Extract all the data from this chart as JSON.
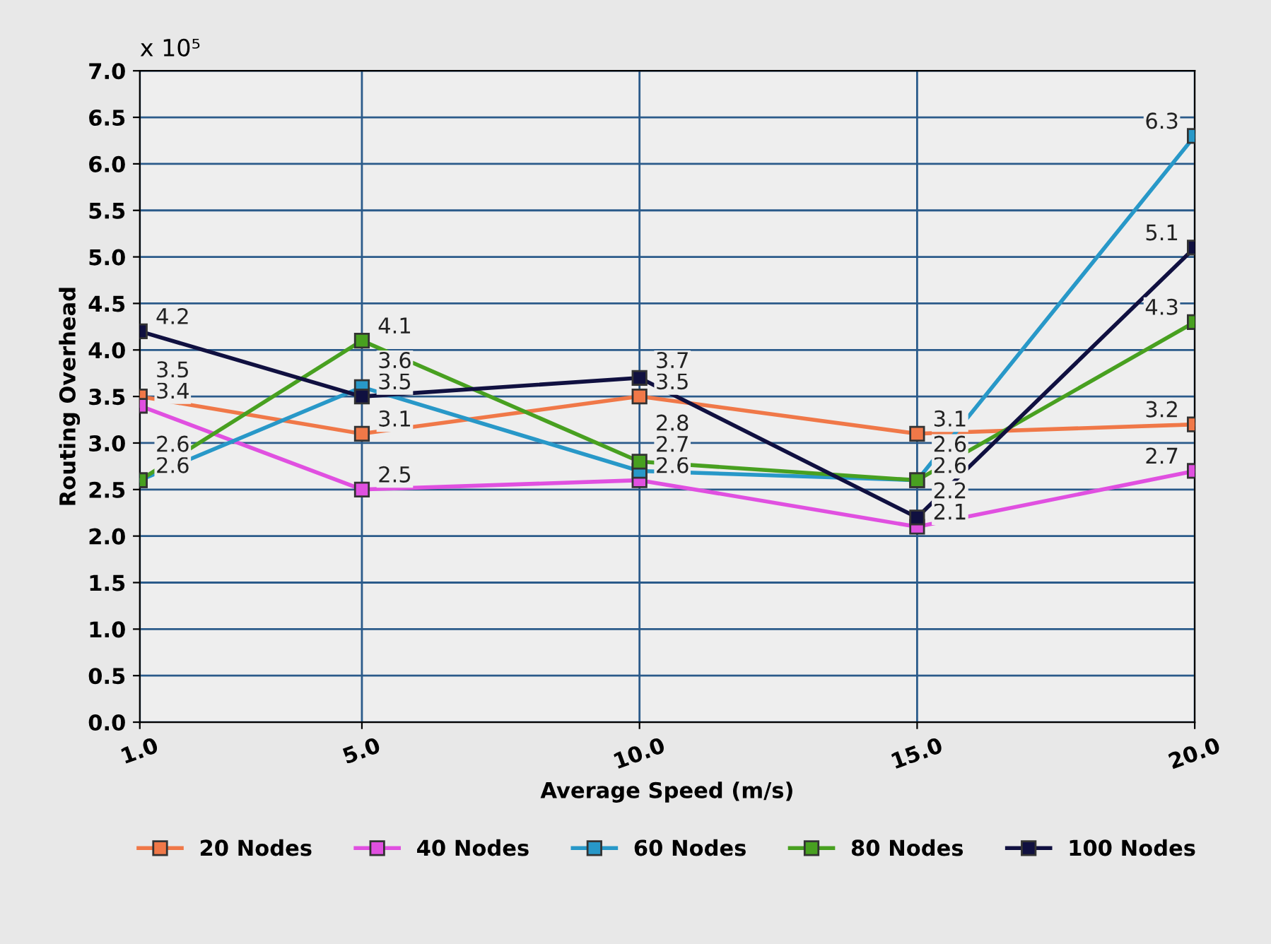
{
  "chart_data": {
    "type": "line",
    "xlabel": "Average Speed (m/s)",
    "ylabel": "Routing Overhead",
    "annotations": [
      "x 10⁵"
    ],
    "x": [
      1,
      5,
      10,
      15,
      20
    ],
    "series": [
      {
        "name": "20 Nodes",
        "color": "#f07848",
        "values": [
          3.5,
          3.1,
          3.5,
          3.1,
          3.2
        ]
      },
      {
        "name": "40 Nodes",
        "color": "#e050e0",
        "values": [
          3.4,
          2.5,
          2.6,
          2.1,
          2.7
        ]
      },
      {
        "name": "60 Nodes",
        "color": "#2898c8",
        "values": [
          2.6,
          3.6,
          2.7,
          2.6,
          6.3
        ]
      },
      {
        "name": "80 Nodes",
        "color": "#48a020",
        "values": [
          2.6,
          4.1,
          2.8,
          2.6,
          4.3
        ]
      },
      {
        "name": "100 Nodes",
        "color": "#101040",
        "values": [
          4.2,
          3.5,
          3.7,
          2.2,
          5.1
        ]
      }
    ],
    "xlim": [
      1,
      20
    ],
    "xticks": [
      {
        "value": 1,
        "label": "1.0"
      },
      {
        "value": 5,
        "label": "5.0"
      },
      {
        "value": 10,
        "label": "10.0"
      },
      {
        "value": 15,
        "label": "15.0"
      },
      {
        "value": 20,
        "label": "20.0"
      }
    ],
    "ylim": [
      0,
      7
    ],
    "yticks": [
      {
        "value": 0,
        "label": "0.0"
      },
      {
        "value": 0.5,
        "label": "0.5"
      },
      {
        "value": 1,
        "label": "1.0"
      },
      {
        "value": 1.5,
        "label": "1.5"
      },
      {
        "value": 2,
        "label": "2.0"
      },
      {
        "value": 2.5,
        "label": "2.5"
      },
      {
        "value": 3,
        "label": "3.0"
      },
      {
        "value": 3.5,
        "label": "3.5"
      },
      {
        "value": 4,
        "label": "4.0"
      },
      {
        "value": 4.5,
        "label": "4.5"
      },
      {
        "value": 5,
        "label": "5.0"
      },
      {
        "value": 5.5,
        "label": "5.5"
      },
      {
        "value": 6,
        "label": "6.0"
      },
      {
        "value": 6.5,
        "label": "6.5"
      },
      {
        "value": 7,
        "label": "7.0"
      }
    ],
    "grid": true,
    "legend": "bottom",
    "marker": "square",
    "line_style": "solid",
    "data_labels": true
  }
}
